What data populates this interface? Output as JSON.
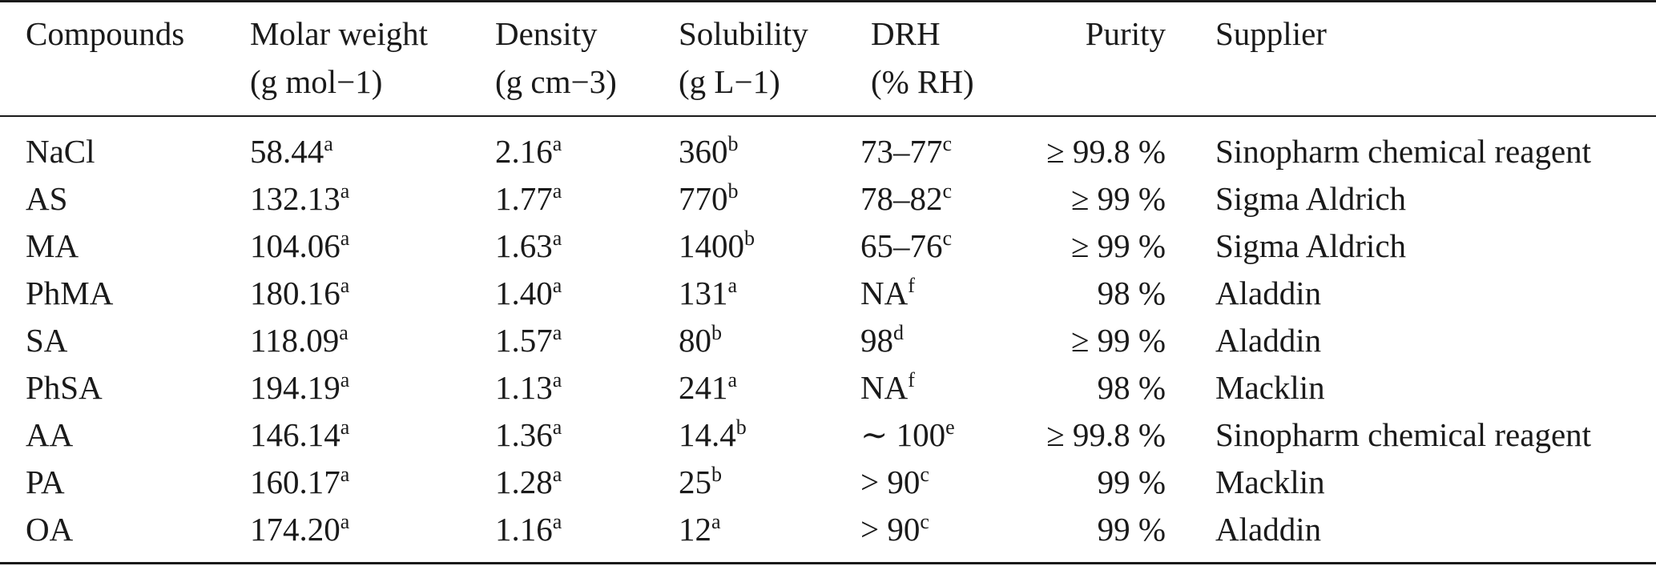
{
  "table": {
    "header": {
      "compounds": "Compounds",
      "molar_weight": "Molar weight",
      "molar_weight_unit": "(g mol−1)",
      "density": "Density",
      "density_unit": "(g cm−3)",
      "solubility": "Solubility",
      "solubility_unit": "(g L−1)",
      "drh": "DRH",
      "drh_unit": "(% RH)",
      "purity": "Purity",
      "supplier": "Supplier"
    },
    "rows": [
      {
        "compound": "NaCl",
        "mw": "58.44",
        "mw_note": "a",
        "density": "2.16",
        "density_note": "a",
        "solubility": "360",
        "solubility_note": "b",
        "drh": "73–77",
        "drh_note": "c",
        "purity": "≥ 99.8 %",
        "supplier": "Sinopharm chemical reagent"
      },
      {
        "compound": "AS",
        "mw": "132.13",
        "mw_note": "a",
        "density": "1.77",
        "density_note": "a",
        "solubility": "770",
        "solubility_note": "b",
        "drh": "78–82",
        "drh_note": "c",
        "purity": "≥ 99 %",
        "supplier": "Sigma Aldrich"
      },
      {
        "compound": "MA",
        "mw": "104.06",
        "mw_note": "a",
        "density": "1.63",
        "density_note": "a",
        "solubility": "1400",
        "solubility_note": "b",
        "drh": "65–76",
        "drh_note": "c",
        "purity": "≥ 99 %",
        "supplier": "Sigma Aldrich"
      },
      {
        "compound": "PhMA",
        "mw": "180.16",
        "mw_note": "a",
        "density": "1.40",
        "density_note": "a",
        "solubility": "131",
        "solubility_note": "a",
        "drh": "NA",
        "drh_note": "f",
        "purity": "98 %",
        "supplier": "Aladdin"
      },
      {
        "compound": "SA",
        "mw": "118.09",
        "mw_note": "a",
        "density": "1.57",
        "density_note": "a",
        "solubility": "80",
        "solubility_note": "b",
        "drh": "98",
        "drh_note": "d",
        "purity": "≥ 99 %",
        "supplier": "Aladdin"
      },
      {
        "compound": "PhSA",
        "mw": "194.19",
        "mw_note": "a",
        "density": "1.13",
        "density_note": "a",
        "solubility": "241",
        "solubility_note": "a",
        "drh": "NA",
        "drh_note": "f",
        "purity": "98 %",
        "supplier": "Macklin"
      },
      {
        "compound": "AA",
        "mw": "146.14",
        "mw_note": "a",
        "density": "1.36",
        "density_note": "a",
        "solubility": "14.4",
        "solubility_note": "b",
        "drh": "∼ 100",
        "drh_note": "e",
        "purity": "≥ 99.8 %",
        "supplier": "Sinopharm chemical reagent"
      },
      {
        "compound": "PA",
        "mw": "160.17",
        "mw_note": "a",
        "density": "1.28",
        "density_note": "a",
        "solubility": "25",
        "solubility_note": "b",
        "drh": "> 90",
        "drh_note": "c",
        "purity": "99 %",
        "supplier": "Macklin"
      },
      {
        "compound": "OA",
        "mw": "174.20",
        "mw_note": "a",
        "density": "1.16",
        "density_note": "a",
        "solubility": "12",
        "solubility_note": "a",
        "drh": "> 90",
        "drh_note": "c",
        "purity": "99 %",
        "supplier": "Aladdin"
      }
    ]
  }
}
